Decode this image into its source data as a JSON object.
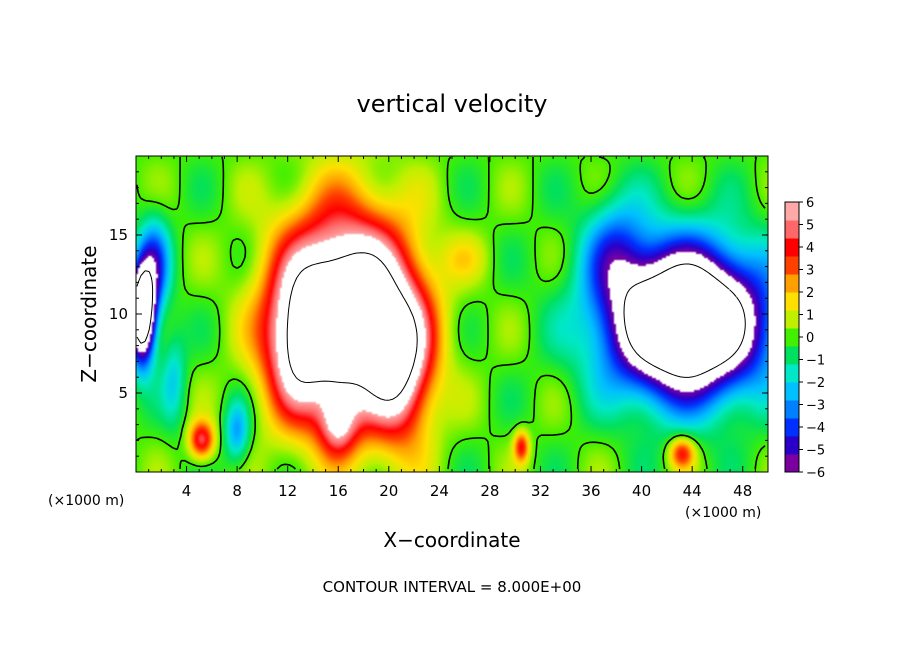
{
  "chart_data": {
    "type": "heatmap",
    "title": "vertical velocity",
    "xlabel": "X−coordinate",
    "ylabel": "Z−coordinate",
    "x_unit_left": "(×1000 m)",
    "x_unit_right": "(×1000 m)",
    "footer": "CONTOUR INTERVAL = 8.000E+00",
    "xlim": [
      0,
      50
    ],
    "ylim": [
      0,
      20
    ],
    "x_ticks": [
      4,
      8,
      12,
      16,
      20,
      24,
      28,
      32,
      36,
      40,
      44,
      48
    ],
    "y_ticks": [
      5,
      10,
      15
    ],
    "colorbar": {
      "range": [
        -6,
        6
      ],
      "tick_values": [
        6,
        5,
        4,
        3,
        2,
        1,
        0,
        -1,
        -2,
        -3,
        -4,
        -5,
        -6
      ],
      "tick_labels": [
        "6",
        "5",
        "4",
        "3",
        "2",
        "1",
        "0",
        "−1",
        "−2",
        "−3",
        "−4",
        "−5",
        "−6"
      ],
      "colors": [
        "#7a00a0",
        "#2a00c8",
        "#0030ff",
        "#0080ff",
        "#00c0ff",
        "#00e8c8",
        "#00e060",
        "#40f000",
        "#c0f000",
        "#ffe000",
        "#ffa000",
        "#ff4000",
        "#ff0000",
        "#ff6868",
        "#ffa8a8"
      ]
    },
    "features": [
      {
        "kind": "updraft",
        "x": 16.5,
        "z": 10.0,
        "sx": 5.0,
        "sz": 6.2,
        "value": 12
      },
      {
        "kind": "updraft",
        "x": 12.5,
        "z": 8.0,
        "sx": 2.5,
        "sz": 4.5,
        "value": 4
      },
      {
        "kind": "updraft",
        "x": 21.0,
        "z": 7.0,
        "sx": 2.5,
        "sz": 5.0,
        "value": 6
      },
      {
        "kind": "updraft",
        "x": 16.0,
        "z": 3.0,
        "sx": 1.5,
        "sz": 2.0,
        "value": 4
      },
      {
        "kind": "updraft",
        "x": 5.2,
        "z": 2.0,
        "sx": 1.0,
        "sz": 1.2,
        "value": 5
      },
      {
        "kind": "updraft",
        "x": 30.5,
        "z": 1.6,
        "sx": 0.6,
        "sz": 1.0,
        "value": 4
      },
      {
        "kind": "updraft",
        "x": 43.2,
        "z": 1.2,
        "sx": 1.0,
        "sz": 1.0,
        "value": 4
      },
      {
        "kind": "updraft",
        "x": 26.0,
        "z": 13.5,
        "sx": 2.0,
        "sz": 1.5,
        "value": 1
      },
      {
        "kind": "downdraft",
        "x": 43.5,
        "z": 9.5,
        "sx": 6.0,
        "sz": 4.5,
        "value": -14
      },
      {
        "kind": "downdraft",
        "x": 38.0,
        "z": 14.0,
        "sx": 2.5,
        "sz": 3.5,
        "value": -3
      },
      {
        "kind": "downdraft",
        "x": 0.5,
        "z": 10.0,
        "sx": 1.0,
        "sz": 3.0,
        "value": -12
      },
      {
        "kind": "downdraft",
        "x": 1.5,
        "z": 13.0,
        "sx": 1.2,
        "sz": 3.0,
        "value": -4
      },
      {
        "kind": "downdraft",
        "x": 8.0,
        "z": 2.5,
        "sx": 1.0,
        "sz": 2.0,
        "value": -3
      },
      {
        "kind": "downdraft",
        "x": 3.0,
        "z": 6.0,
        "sx": 1.0,
        "sz": 3.0,
        "value": -2
      }
    ]
  }
}
